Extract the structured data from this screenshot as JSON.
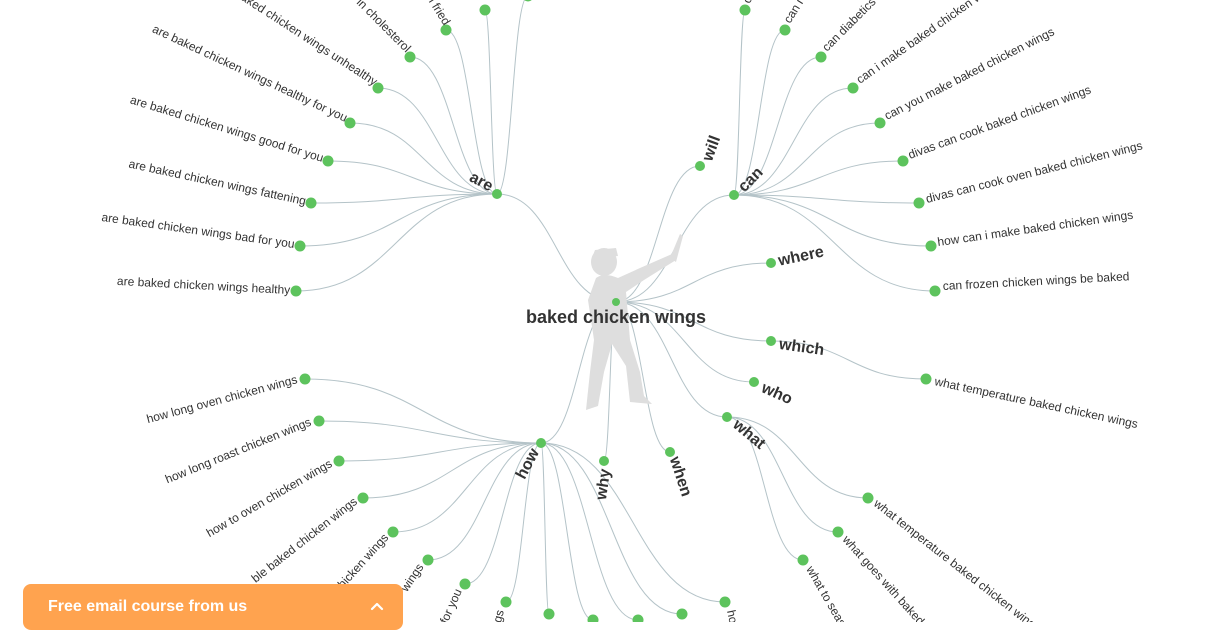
{
  "root": {
    "label": "baked chicken wings"
  },
  "banner": {
    "label": "Free email course from us"
  },
  "colors": {
    "node": "#5dc35d",
    "link": "#b4c3c8",
    "text": "#333333",
    "banner": "#ffa34f"
  },
  "icons": {
    "center_figure": "chef-silhouette-icon",
    "banner_toggle": "chevron-up-icon"
  },
  "branches": {
    "are": {
      "label": "are",
      "leaves": [
        "are baked chicken wings healthy",
        "are baked chicken wings bad for you",
        "are baked chicken wings fattening",
        "are baked chicken wings good for you",
        "are baked chicken wings healthy for you",
        "are baked chicken wings unhealthy",
        "are baked chicken wings high in cholesterol",
        "are baked chicken wings healthier than fried",
        "",
        ""
      ]
    },
    "can": {
      "label": "can",
      "leaves": [
        "can frozen chicken wings be baked",
        "how can i make baked chicken wings",
        "divas can cook oven baked chicken wings",
        "divas can cook baked chicken wings",
        "can you make baked chicken wings",
        "can i make baked chicken wings",
        "can diabetics eat baked chicken wings",
        "can i",
        "c"
      ]
    },
    "will": {
      "label": "will"
    },
    "where": {
      "label": "where"
    },
    "which": {
      "label": "which",
      "leaves": [
        "what temperature baked chicken wings"
      ]
    },
    "who": {
      "label": "who"
    },
    "what": {
      "label": "what",
      "leaves": [
        "what temperature baked chicken wings",
        "what goes with baked",
        "what to seas"
      ]
    },
    "when": {
      "label": "when"
    },
    "why": {
      "label": "why"
    },
    "how": {
      "label": "how",
      "leaves": [
        "how long oven chicken wings",
        "how long roast chicken wings",
        "how to oven chicken wings",
        "ble baked chicken wings",
        "chicken wings",
        "wings",
        "for you",
        "gs",
        "",
        "",
        "",
        "",
        "ho"
      ]
    }
  }
}
